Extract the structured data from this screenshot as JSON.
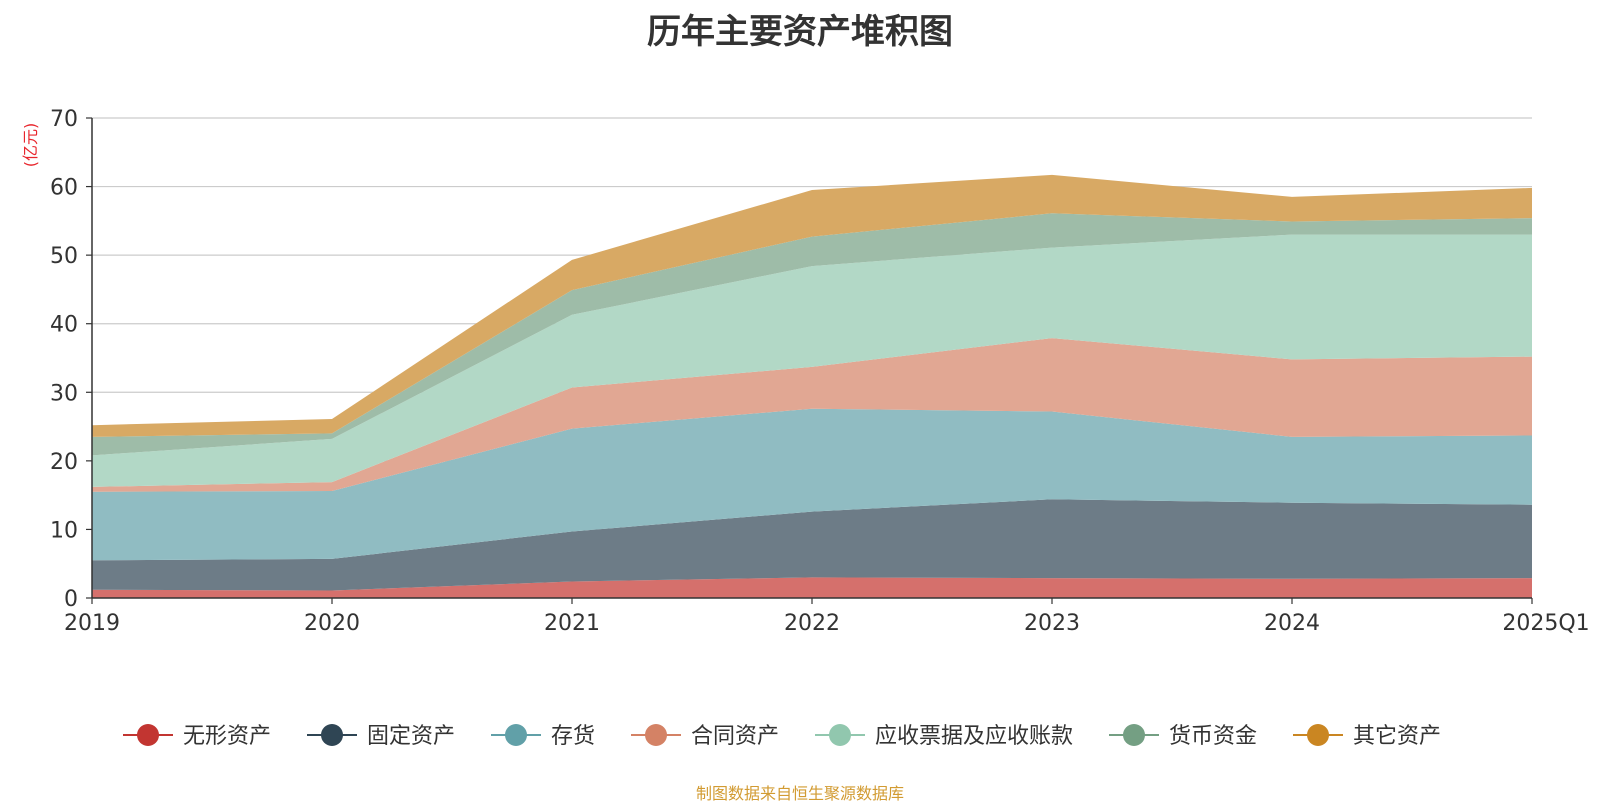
{
  "chart_data": {
    "type": "area",
    "stacked": true,
    "title": "历年主要资产堆积图",
    "unit_label": "(亿元)",
    "source_note": "制图数据来自恒生聚源数据库",
    "x": [
      "2019",
      "2020",
      "2021",
      "2022",
      "2023",
      "2024",
      "2025Q1"
    ],
    "ylim": [
      0,
      70
    ],
    "yticks": [
      0,
      10,
      20,
      30,
      40,
      50,
      60,
      70
    ],
    "grid": true,
    "legend_position": "bottom",
    "series": [
      {
        "name": "无形资产",
        "color": "#c23531",
        "area_color": "#d5706c",
        "values": [
          1.2,
          1.1,
          2.4,
          3.0,
          2.9,
          2.8,
          2.9
        ]
      },
      {
        "name": "固定资产",
        "color": "#2f4554",
        "area_color": "#6d7c87",
        "values": [
          4.3,
          4.6,
          7.3,
          9.6,
          11.5,
          11.1,
          10.7
        ]
      },
      {
        "name": "存货",
        "color": "#61a0a8",
        "area_color": "#90bcc2",
        "values": [
          10.0,
          9.9,
          15.0,
          15.0,
          12.8,
          9.6,
          10.1
        ]
      },
      {
        "name": "合同资产",
        "color": "#d48265",
        "area_color": "#e1a793",
        "values": [
          0.7,
          1.3,
          6.0,
          6.1,
          10.7,
          11.3,
          11.5
        ]
      },
      {
        "name": "应收票据及应收账款",
        "color": "#91c7ae",
        "area_color": "#b2d8c6",
        "values": [
          4.6,
          6.3,
          10.6,
          14.7,
          13.2,
          18.2,
          17.8
        ]
      },
      {
        "name": "货币资金",
        "color": "#749f83",
        "area_color": "#9ebca8",
        "values": [
          2.7,
          0.8,
          3.6,
          4.3,
          5.0,
          1.9,
          2.4
        ]
      },
      {
        "name": "其它资产",
        "color": "#ca8622",
        "area_color": "#d8a964",
        "values": [
          1.7,
          2.1,
          4.4,
          6.8,
          5.6,
          3.6,
          4.4
        ]
      }
    ]
  }
}
